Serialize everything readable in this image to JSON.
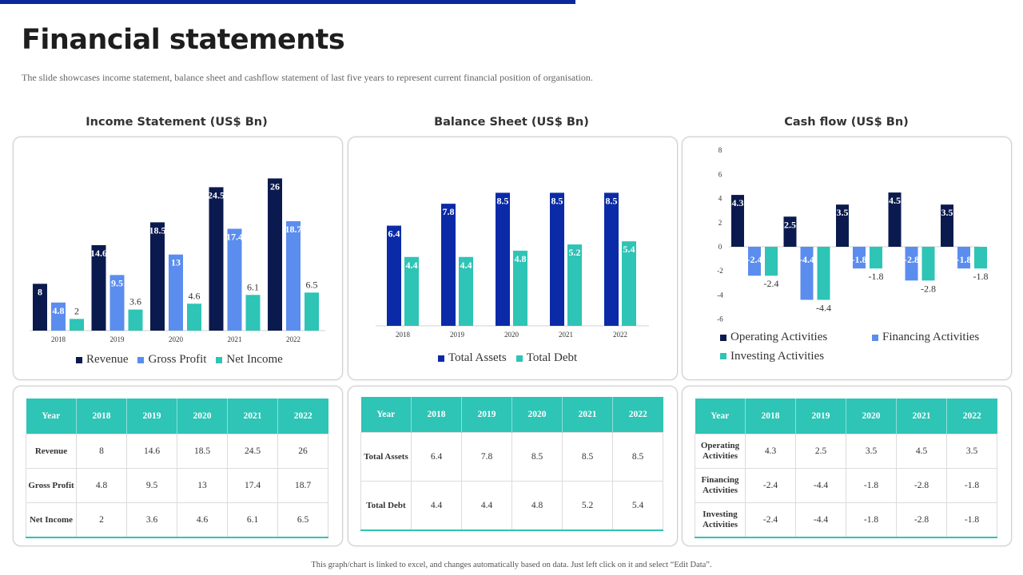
{
  "page": {
    "title": "Financial statements",
    "subtitle": "The slide showcases income statement, balance sheet and cashflow statement of last five years to represent current financial position of organisation.",
    "footer": "This graph/chart is linked to excel, and changes automatically based on data. Just left click on it and select “Edit Data”."
  },
  "colors": {
    "navy": "#0b1a4e",
    "blue": "#0b2aa8",
    "light_blue": "#5b8def",
    "teal": "#2ec4b6",
    "accent_bar": "#0a2a9a"
  },
  "chart_data": [
    {
      "type": "bar",
      "title": "Income Statement (US$ Bn)",
      "categories": [
        "2018",
        "2019",
        "2020",
        "2021",
        "2022"
      ],
      "series": [
        {
          "name": "Revenue",
          "values": [
            8,
            14.6,
            18.5,
            24.5,
            26
          ],
          "color": "#0b1a4e"
        },
        {
          "name": "Gross Profit",
          "values": [
            4.8,
            9.5,
            13,
            17.4,
            18.7
          ],
          "color": "#5b8def"
        },
        {
          "name": "Net Income",
          "values": [
            2,
            3.6,
            4.6,
            6.1,
            6.5
          ],
          "color": "#2ec4b6"
        }
      ],
      "ylim": [
        0,
        30
      ],
      "grid": false,
      "legend": "bottom"
    },
    {
      "type": "bar",
      "title": "Balance Sheet (US$ Bn)",
      "categories": [
        "2018",
        "2019",
        "2020",
        "2021",
        "2022"
      ],
      "series": [
        {
          "name": "Total Assets",
          "values": [
            6.4,
            7.8,
            8.5,
            8.5,
            8.5
          ],
          "color": "#0b2aa8"
        },
        {
          "name": "Total Debt",
          "values": [
            4.4,
            4.4,
            4.8,
            5.2,
            5.4
          ],
          "color": "#2ec4b6"
        }
      ],
      "ylim": [
        0,
        10
      ],
      "grid": false,
      "legend": "bottom"
    },
    {
      "type": "bar",
      "title": "Cash flow (US$ Bn)",
      "categories": [
        "2018",
        "2019",
        "2020",
        "2021",
        "2022"
      ],
      "series": [
        {
          "name": "Operating Activities",
          "values": [
            4.3,
            2.5,
            3.5,
            4.5,
            3.5
          ],
          "color": "#0b1a4e"
        },
        {
          "name": "Financing Activities",
          "values": [
            -2.4,
            -4.4,
            -1.8,
            -2.8,
            -1.8
          ],
          "color": "#5b8def"
        },
        {
          "name": "Investing Activities",
          "values": [
            -2.4,
            -4.4,
            -1.8,
            -2.8,
            -1.8
          ],
          "color": "#2ec4b6"
        }
      ],
      "ylim": [
        -6,
        8
      ],
      "yticks": [
        "8",
        "6",
        "4",
        "2",
        "0",
        "-2",
        "-4",
        "-6"
      ],
      "grid": false,
      "legend": "bottom"
    }
  ],
  "tables": {
    "income": {
      "header": [
        "Year",
        "2018",
        "2019",
        "2020",
        "2021",
        "2022"
      ],
      "rows": [
        [
          "Revenue",
          "8",
          "14.6",
          "18.5",
          "24.5",
          "26"
        ],
        [
          "Gross Profit",
          "4.8",
          "9.5",
          "13",
          "17.4",
          "18.7"
        ],
        [
          "Net Income",
          "2",
          "3.6",
          "4.6",
          "6.1",
          "6.5"
        ]
      ]
    },
    "balance": {
      "header": [
        "Year",
        "2018",
        "2019",
        "2020",
        "2021",
        "2022"
      ],
      "rows": [
        [
          "Total Assets",
          "6.4",
          "7.8",
          "8.5",
          "8.5",
          "8.5"
        ],
        [
          "Total Debt",
          "4.4",
          "4.4",
          "4.8",
          "5.2",
          "5.4"
        ]
      ]
    },
    "cashflow": {
      "header": [
        "Year",
        "2018",
        "2019",
        "2020",
        "2021",
        "2022"
      ],
      "rows": [
        [
          "Operating Activities",
          "4.3",
          "2.5",
          "3.5",
          "4.5",
          "3.5"
        ],
        [
          "Financing Activities",
          "-2.4",
          "-4.4",
          "-1.8",
          "-2.8",
          "-1.8"
        ],
        [
          "Investing Activities",
          "-2.4",
          "-4.4",
          "-1.8",
          "-2.8",
          "-1.8"
        ]
      ]
    }
  }
}
